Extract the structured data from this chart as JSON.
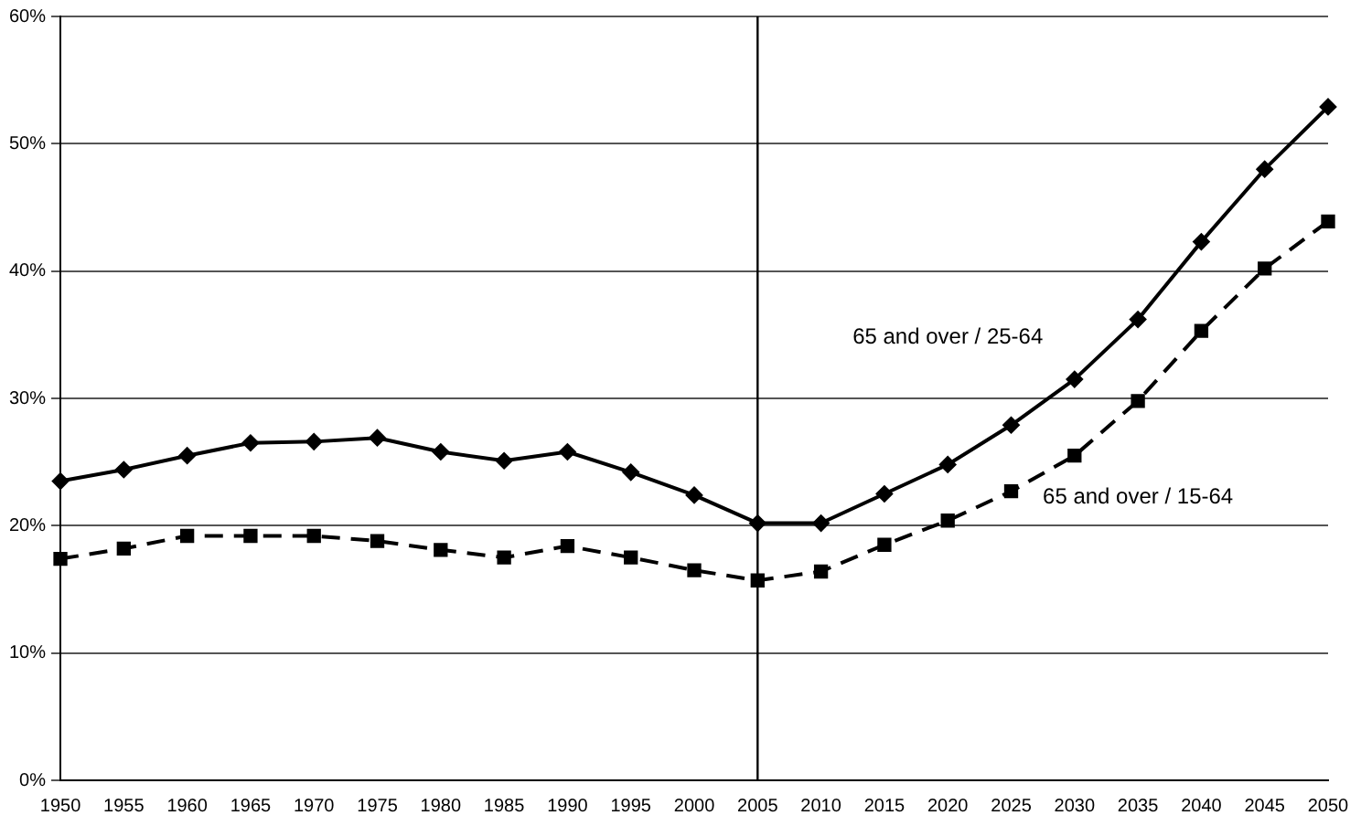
{
  "chart_data": {
    "type": "line",
    "categories": [
      "1950",
      "1955",
      "1960",
      "1965",
      "1970",
      "1975",
      "1980",
      "1985",
      "1990",
      "1995",
      "2000",
      "2005",
      "2010",
      "2015",
      "2020",
      "2025",
      "2030",
      "2035",
      "2040",
      "2045",
      "2050"
    ],
    "series": [
      {
        "color": "#000000",
        "marker": "diamond",
        "line_style": "solid",
        "values": [
          23.5,
          24.4,
          25.5,
          26.5,
          26.6,
          26.9,
          25.8,
          25.1,
          25.8,
          24.2,
          22.4,
          20.2,
          20.2,
          22.5,
          24.8,
          27.9,
          31.5,
          36.2,
          42.3,
          48.0,
          52.9
        ]
      },
      {
        "color": "#000000",
        "marker": "square",
        "line_style": "dashed",
        "values": [
          17.4,
          18.2,
          19.2,
          19.2,
          19.2,
          18.8,
          18.1,
          17.5,
          18.4,
          17.5,
          16.5,
          15.7,
          16.4,
          18.5,
          20.4,
          22.7,
          25.5,
          29.8,
          35.3,
          40.2,
          43.9
        ]
      }
    ],
    "ylim": [
      0,
      60
    ],
    "yticks": [
      {
        "value": 0,
        "label": "0%"
      },
      {
        "value": 10,
        "label": "10%"
      },
      {
        "value": 20,
        "label": "20%"
      },
      {
        "value": 30,
        "label": "30%"
      },
      {
        "value": 40,
        "label": "40%"
      },
      {
        "value": 50,
        "label": "50%"
      },
      {
        "value": 60,
        "label": "60%"
      }
    ],
    "grid": "y",
    "legend": false,
    "ref_lines": [
      {
        "axis": "x",
        "value": "2005",
        "color": "#000000"
      }
    ],
    "annotations": [
      "65 and over / 25-64",
      "65 and over / 15-64"
    ]
  }
}
